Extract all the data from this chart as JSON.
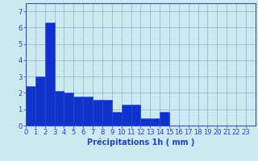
{
  "values": [
    2.4,
    3.0,
    6.3,
    2.1,
    2.0,
    1.8,
    1.8,
    1.6,
    1.6,
    0.85,
    1.3,
    1.3,
    0.45,
    0.45,
    0.85,
    0.0,
    0.0,
    0.0,
    0.0,
    0.0,
    0.0,
    0.0,
    0.0,
    0.0
  ],
  "bar_color": "#1133cc",
  "bar_edge_color": "#2244dd",
  "background_color": "#cce8f0",
  "grid_color": "#99bbcc",
  "axis_color": "#3355aa",
  "xlabel": "Précipitations 1h ( mm )",
  "ylim": [
    0,
    7.5
  ],
  "yticks": [
    0,
    1,
    2,
    3,
    4,
    5,
    6,
    7
  ],
  "xlabel_fontsize": 7,
  "tick_fontsize": 6,
  "tick_color": "#2244bb"
}
